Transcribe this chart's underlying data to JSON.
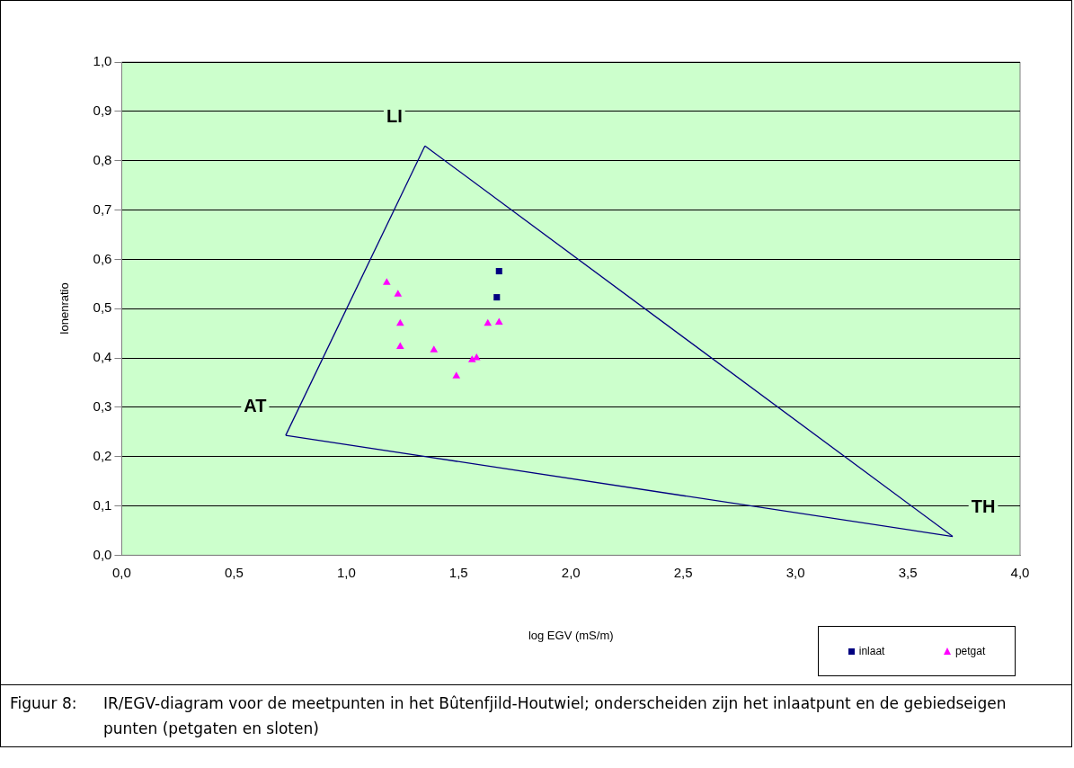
{
  "chart_data": {
    "type": "scatter",
    "xlabel": "log EGV (mS/m)",
    "ylabel": "Ionenratio",
    "xlim": [
      0,
      4
    ],
    "ylim": [
      0,
      1
    ],
    "xticks": [
      {
        "value": 0,
        "label": "0,0"
      },
      {
        "value": 0.5,
        "label": "0,5"
      },
      {
        "value": 1,
        "label": "1,0"
      },
      {
        "value": 1.5,
        "label": "1,5"
      },
      {
        "value": 2,
        "label": "2,0"
      },
      {
        "value": 2.5,
        "label": "2,5"
      },
      {
        "value": 3,
        "label": "3,0"
      },
      {
        "value": 3.5,
        "label": "3,5"
      },
      {
        "value": 4,
        "label": "4,0"
      }
    ],
    "yticks": [
      {
        "value": 0,
        "label": "0,0"
      },
      {
        "value": 0.1,
        "label": "0,1"
      },
      {
        "value": 0.2,
        "label": "0,2"
      },
      {
        "value": 0.3,
        "label": "0,3"
      },
      {
        "value": 0.4,
        "label": "0,4"
      },
      {
        "value": 0.5,
        "label": "0,5"
      },
      {
        "value": 0.6,
        "label": "0,6"
      },
      {
        "value": 0.7,
        "label": "0,7"
      },
      {
        "value": 0.8,
        "label": "0,8"
      },
      {
        "value": 0.9,
        "label": "0,9"
      },
      {
        "value": 1,
        "label": "1,0"
      }
    ],
    "grid": "y",
    "legend": "bottom right",
    "series": [
      {
        "type": "line",
        "color": "#000080",
        "marker": "none",
        "x": [
          0.73,
          1.35
        ],
        "values": [
          0.243,
          0.83
        ]
      },
      {
        "type": "line",
        "color": "#000080",
        "marker": "none",
        "x": [
          1.35,
          3.7
        ],
        "values": [
          0.83,
          0.038
        ]
      },
      {
        "type": "line",
        "color": "#000080",
        "marker": "none",
        "x": [
          0.73,
          3.7
        ],
        "values": [
          0.243,
          0.038
        ]
      },
      {
        "name": "inlaat",
        "color": "#000080",
        "marker": "square",
        "x": [
          1.68,
          1.67
        ],
        "values": [
          0.576,
          0.523
        ]
      },
      {
        "name": "petgat",
        "color": "#ff00ff",
        "marker": "triangle",
        "x": [
          1.18,
          1.23,
          1.24,
          1.24,
          1.39,
          1.56,
          1.58,
          1.49,
          1.63,
          1.68
        ],
        "values": [
          0.553,
          0.529,
          0.47,
          0.423,
          0.416,
          0.396,
          0.4,
          0.363,
          0.47,
          0.472
        ]
      }
    ],
    "annotations": [
      {
        "text": "LI",
        "x": 1.35,
        "y": 0.83
      },
      {
        "text": "AT",
        "x": 0.73,
        "y": 0.243
      },
      {
        "text": "TH",
        "x": 3.7,
        "y": 0.038
      },
      "Figuur 8:\tIR/EGV-diagram voor de meetpunten in het Bûtenfjild-Houtwiel; onderscheiden zijn het inlaatpunt en de gebiedseigen punten (petgaten en sloten)"
    ]
  }
}
